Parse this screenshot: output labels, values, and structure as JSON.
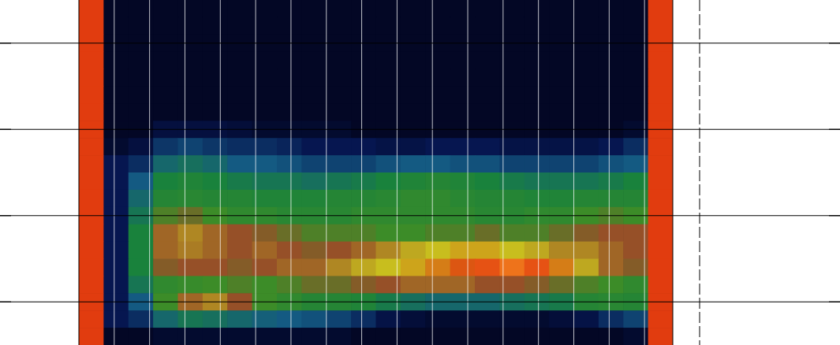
{
  "chart_data": {
    "type": "heatmap",
    "x": [
      0.35,
      1.05,
      1.75,
      2.45,
      3.15,
      3.85,
      4.55,
      5.25,
      5.95,
      6.65,
      7.35,
      8.05,
      8.75,
      9.45,
      10.15,
      10.85,
      11.55,
      12.25,
      12.95,
      13.65,
      14.35,
      15.05,
      15.75,
      16.45
    ],
    "y": [
      3.4,
      3.2,
      3.0,
      2.8,
      2.6,
      2.4,
      2.2,
      2.0,
      1.8,
      1.6,
      1.4,
      1.2,
      1.0,
      0.8,
      0.6,
      0.4,
      0.2,
      0.0,
      -0.2,
      -0.4
    ],
    "cells": [
      [
        0.9,
        0.02,
        0.02,
        0.02,
        0.02,
        0.02,
        0.02,
        0.02,
        0.02,
        0.02,
        0.02,
        0.02,
        0.02,
        0.02,
        0.02,
        0.02,
        0.02,
        0.02,
        0.02,
        0.02,
        0.02,
        0.02,
        0.02,
        0.9
      ],
      [
        0.9,
        0.02,
        0.02,
        0.02,
        0.02,
        0.02,
        0.02,
        0.02,
        0.02,
        0.02,
        0.02,
        0.02,
        0.02,
        0.02,
        0.02,
        0.02,
        0.02,
        0.02,
        0.02,
        0.02,
        0.02,
        0.02,
        0.02,
        0.9
      ],
      [
        0.9,
        0.02,
        0.02,
        0.02,
        0.02,
        0.02,
        0.02,
        0.02,
        0.02,
        0.02,
        0.02,
        0.02,
        0.02,
        0.02,
        0.02,
        0.02,
        0.02,
        0.02,
        0.02,
        0.02,
        0.02,
        0.02,
        0.02,
        0.9
      ],
      [
        0.9,
        0.02,
        0.02,
        0.02,
        0.02,
        0.02,
        0.02,
        0.02,
        0.02,
        0.02,
        0.02,
        0.02,
        0.02,
        0.02,
        0.02,
        0.02,
        0.02,
        0.02,
        0.02,
        0.02,
        0.02,
        0.02,
        0.02,
        0.9
      ],
      [
        0.9,
        0.02,
        0.02,
        0.02,
        0.02,
        0.02,
        0.02,
        0.02,
        0.02,
        0.02,
        0.02,
        0.02,
        0.02,
        0.02,
        0.02,
        0.02,
        0.02,
        0.02,
        0.02,
        0.02,
        0.02,
        0.02,
        0.02,
        0.9
      ],
      [
        0.9,
        0.02,
        0.02,
        0.02,
        0.02,
        0.02,
        0.02,
        0.02,
        0.02,
        0.02,
        0.02,
        0.02,
        0.02,
        0.02,
        0.02,
        0.02,
        0.02,
        0.02,
        0.02,
        0.02,
        0.02,
        0.02,
        0.02,
        0.9
      ],
      [
        0.9,
        0.02,
        0.02,
        0.02,
        0.02,
        0.02,
        0.02,
        0.02,
        0.02,
        0.02,
        0.02,
        0.02,
        0.02,
        0.02,
        0.02,
        0.02,
        0.02,
        0.02,
        0.02,
        0.02,
        0.02,
        0.02,
        0.02,
        0.9
      ],
      [
        0.9,
        0.02,
        0.02,
        0.1,
        0.1,
        0.1,
        0.08,
        0.05,
        0.05,
        0.05,
        0.05,
        0.02,
        0.02,
        0.02,
        0.02,
        0.02,
        0.02,
        0.02,
        0.02,
        0.02,
        0.02,
        0.02,
        0.05,
        0.9
      ],
      [
        0.9,
        0.05,
        0.1,
        0.22,
        0.25,
        0.22,
        0.2,
        0.2,
        0.18,
        0.15,
        0.15,
        0.15,
        0.12,
        0.12,
        0.15,
        0.15,
        0.15,
        0.12,
        0.12,
        0.12,
        0.12,
        0.15,
        0.2,
        0.9
      ],
      [
        0.9,
        0.15,
        0.2,
        0.35,
        0.38,
        0.35,
        0.3,
        0.3,
        0.28,
        0.25,
        0.25,
        0.25,
        0.28,
        0.3,
        0.3,
        0.28,
        0.28,
        0.25,
        0.25,
        0.25,
        0.25,
        0.28,
        0.3,
        0.9
      ],
      [
        0.9,
        0.15,
        0.3,
        0.45,
        0.48,
        0.45,
        0.42,
        0.4,
        0.4,
        0.38,
        0.4,
        0.42,
        0.45,
        0.48,
        0.5,
        0.48,
        0.45,
        0.42,
        0.4,
        0.4,
        0.4,
        0.42,
        0.45,
        0.9
      ],
      [
        0.9,
        0.15,
        0.35,
        0.5,
        0.52,
        0.5,
        0.5,
        0.48,
        0.48,
        0.48,
        0.5,
        0.5,
        0.52,
        0.55,
        0.55,
        0.52,
        0.5,
        0.5,
        0.48,
        0.48,
        0.5,
        0.5,
        0.5,
        0.9
      ],
      [
        0.9,
        0.15,
        0.4,
        0.62,
        0.65,
        0.6,
        0.55,
        0.55,
        0.52,
        0.52,
        0.52,
        0.55,
        0.55,
        0.55,
        0.55,
        0.55,
        0.52,
        0.52,
        0.55,
        0.55,
        0.6,
        0.62,
        0.6,
        0.9
      ],
      [
        0.9,
        0.15,
        0.45,
        0.72,
        0.75,
        0.72,
        0.7,
        0.68,
        0.65,
        0.62,
        0.62,
        0.62,
        0.6,
        0.6,
        0.62,
        0.62,
        0.65,
        0.62,
        0.62,
        0.65,
        0.68,
        0.7,
        0.7,
        0.9
      ],
      [
        0.9,
        0.15,
        0.45,
        0.72,
        0.74,
        0.72,
        0.7,
        0.72,
        0.7,
        0.68,
        0.7,
        0.72,
        0.75,
        0.78,
        0.8,
        0.82,
        0.82,
        0.8,
        0.78,
        0.75,
        0.75,
        0.72,
        0.7,
        0.9
      ],
      [
        0.9,
        0.15,
        0.45,
        0.68,
        0.7,
        0.7,
        0.68,
        0.7,
        0.72,
        0.72,
        0.75,
        0.78,
        0.8,
        0.82,
        0.85,
        0.88,
        0.92,
        0.95,
        0.92,
        0.85,
        0.78,
        0.72,
        0.68,
        0.9
      ],
      [
        0.9,
        0.15,
        0.4,
        0.55,
        0.58,
        0.6,
        0.62,
        0.6,
        0.62,
        0.65,
        0.65,
        0.68,
        0.7,
        0.72,
        0.72,
        0.72,
        0.7,
        0.7,
        0.68,
        0.65,
        0.62,
        0.6,
        0.55,
        0.9
      ],
      [
        0.9,
        0.15,
        0.3,
        0.6,
        0.72,
        0.75,
        0.7,
        0.6,
        0.55,
        0.5,
        0.5,
        0.48,
        0.42,
        0.38,
        0.35,
        0.35,
        0.35,
        0.38,
        0.4,
        0.42,
        0.5,
        0.52,
        0.5,
        0.9
      ],
      [
        0.9,
        0.15,
        0.2,
        0.35,
        0.4,
        0.38,
        0.35,
        0.32,
        0.3,
        0.28,
        0.25,
        0.2,
        0.12,
        0.08,
        0.05,
        0.05,
        0.05,
        0.05,
        0.05,
        0.08,
        0.12,
        0.2,
        0.25,
        0.9
      ],
      [
        0.9,
        0.02,
        0.02,
        0.05,
        0.05,
        0.05,
        0.05,
        0.05,
        0.05,
        0.05,
        0.05,
        0.02,
        0.02,
        0.02,
        0.02,
        0.02,
        0.02,
        0.02,
        0.02,
        0.02,
        0.02,
        0.02,
        0.05,
        0.9
      ]
    ],
    "zlim": [
      0,
      1
    ],
    "xlim": [
      0,
      16.8
    ],
    "ylim": [
      -0.5,
      3.5
    ],
    "xticks": [
      1,
      2,
      3,
      4,
      5,
      6,
      7,
      8,
      9,
      10,
      11,
      12,
      13,
      14,
      15,
      16
    ],
    "yticks": [
      0,
      1,
      2,
      3
    ],
    "grid": true,
    "tick_labels": false
  }
}
